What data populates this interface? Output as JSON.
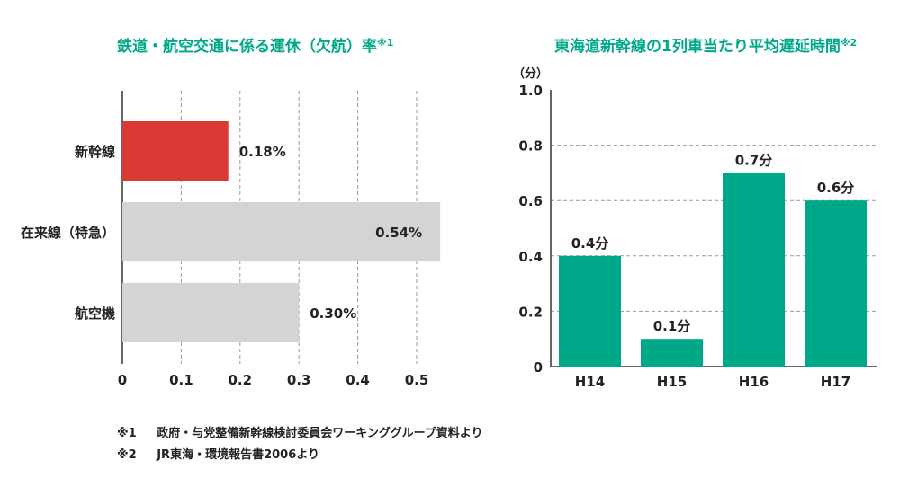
{
  "colors": {
    "accent": "#00a88a",
    "highlight": "#d93a35",
    "neutral": "#d4d4d4",
    "text": "#222222"
  },
  "chart_data": [
    {
      "type": "bar",
      "orientation": "horizontal",
      "title": "鉄道・航空交通に係る運休（欠航）率",
      "title_note": "※1",
      "categories": [
        "新幹線",
        "在来線（特急）",
        "航空機"
      ],
      "values": [
        0.18,
        0.54,
        0.3
      ],
      "value_labels": [
        "0.18%",
        "0.54%",
        "0.30%"
      ],
      "xlim": [
        0,
        0.6
      ],
      "xticks": [
        "0",
        "0.1",
        "0.2",
        "0.3",
        "0.4",
        "0.5"
      ],
      "grid": "vertical dashed"
    },
    {
      "type": "bar",
      "title": "東海道新幹線の1列車当たり平均遅延時間",
      "title_note": "※2",
      "ylabel": "（分）",
      "categories": [
        "H14",
        "H15",
        "H16",
        "H17"
      ],
      "values": [
        0.4,
        0.1,
        0.7,
        0.6
      ],
      "value_labels": [
        "0.4分",
        "0.1分",
        "0.7分",
        "0.6分"
      ],
      "ylim": [
        0,
        1.0
      ],
      "yticks": [
        "0",
        "0.2",
        "0.4",
        "0.6",
        "0.8",
        "1.0"
      ],
      "grid": "horizontal dashed"
    }
  ],
  "notes": [
    {
      "mark": "※1",
      "text": "政府・与党整備新幹線検討委員会ワーキンググループ資料より"
    },
    {
      "mark": "※2",
      "text": "JR東海・環境報告書2006より"
    }
  ]
}
